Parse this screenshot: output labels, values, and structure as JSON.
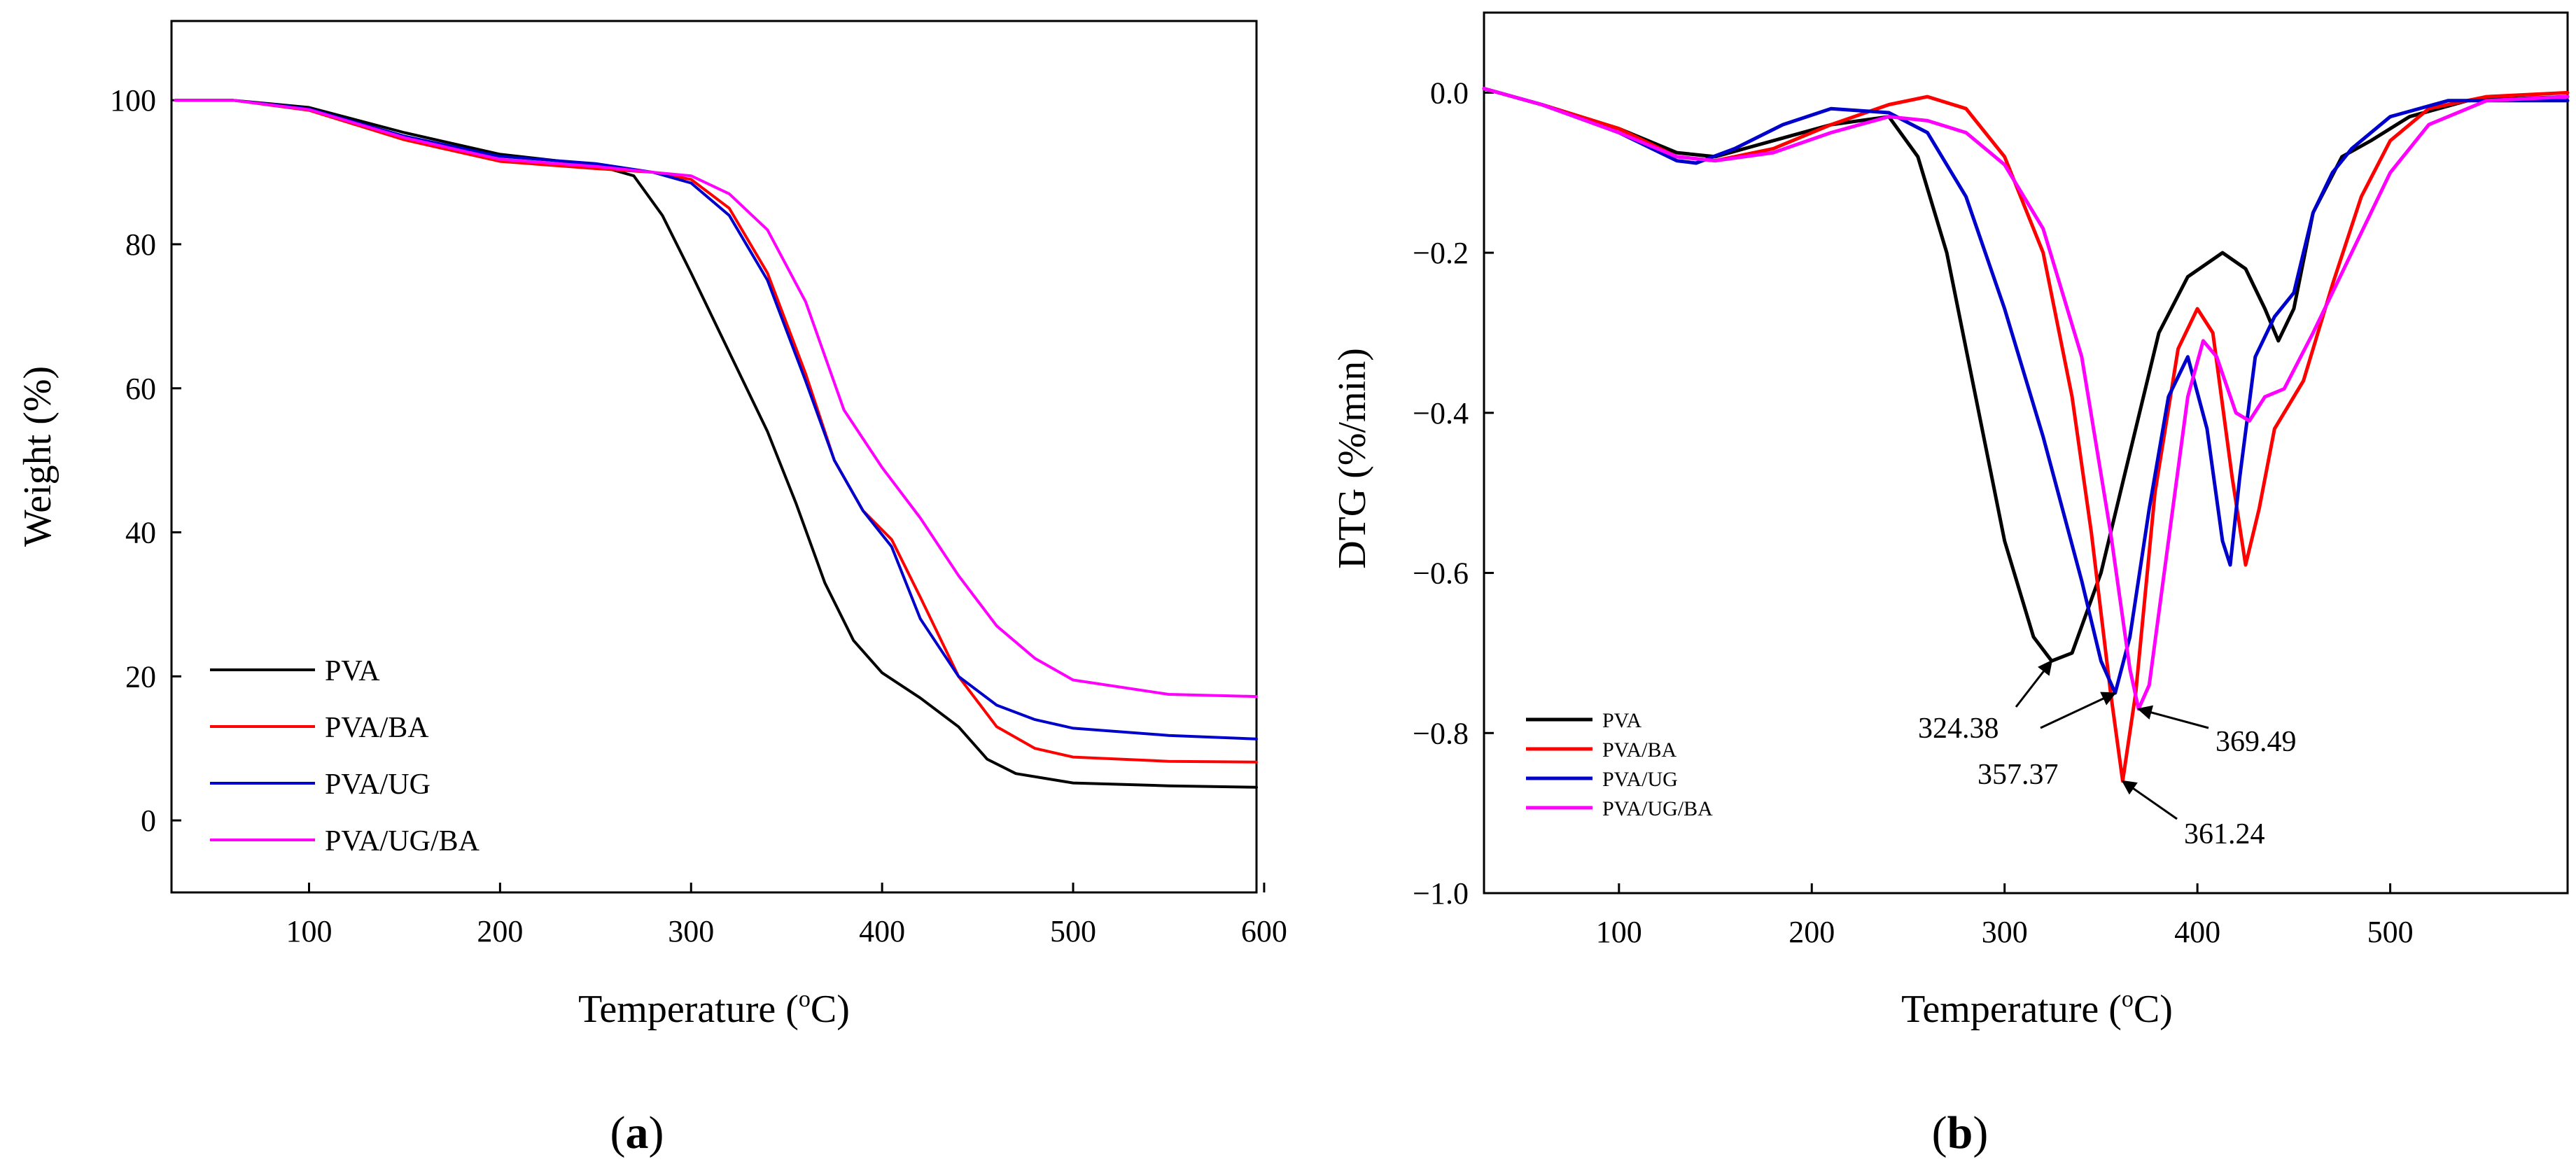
{
  "panels": {
    "a": {
      "open": "(",
      "letter": "a",
      "close": ")"
    },
    "b": {
      "open": "(",
      "letter": "b",
      "close": ")"
    }
  },
  "chart_data": [
    {
      "type": "line",
      "panel": "a",
      "title": "",
      "xlabel": "Temperature (oC)",
      "xlabel_parts": {
        "pre": "Temperature (",
        "sup": "o",
        "post": "C)"
      },
      "ylabel": "Weight (%)",
      "xlim": [
        28,
        596
      ],
      "ylim": [
        -10,
        111
      ],
      "xticks": [
        100,
        200,
        300,
        400,
        500,
        600
      ],
      "yticks": [
        0,
        20,
        40,
        60,
        80,
        100
      ],
      "legend_position": "bottom-left",
      "series": [
        {
          "name": "PVA",
          "color": "#000000",
          "points": [
            [
              30,
              100
            ],
            [
              60,
              100
            ],
            [
              100,
              99
            ],
            [
              150,
              95.5
            ],
            [
              200,
              92.5
            ],
            [
              250,
              91
            ],
            [
              270,
              89.5
            ],
            [
              285,
              84
            ],
            [
              300,
              76
            ],
            [
              320,
              65
            ],
            [
              340,
              54
            ],
            [
              355,
              44
            ],
            [
              370,
              33
            ],
            [
              385,
              25
            ],
            [
              400,
              20.5
            ],
            [
              420,
              17
            ],
            [
              440,
              13
            ],
            [
              455,
              8.5
            ],
            [
              470,
              6.5
            ],
            [
              500,
              5.2
            ],
            [
              550,
              4.8
            ],
            [
              596,
              4.6
            ]
          ]
        },
        {
          "name": "PVA/BA",
          "color": "#ff0000",
          "points": [
            [
              30,
              100
            ],
            [
              60,
              100
            ],
            [
              100,
              98.6
            ],
            [
              150,
              94.5
            ],
            [
              200,
              91.5
            ],
            [
              250,
              90.5
            ],
            [
              280,
              90
            ],
            [
              300,
              89
            ],
            [
              320,
              85
            ],
            [
              340,
              76
            ],
            [
              360,
              62
            ],
            [
              375,
              50
            ],
            [
              390,
              43
            ],
            [
              405,
              39
            ],
            [
              420,
              31
            ],
            [
              440,
              20
            ],
            [
              460,
              13
            ],
            [
              480,
              10
            ],
            [
              500,
              8.8
            ],
            [
              550,
              8.2
            ],
            [
              596,
              8.1
            ]
          ]
        },
        {
          "name": "PVA/UG",
          "color": "#0000cc",
          "points": [
            [
              30,
              100
            ],
            [
              60,
              100
            ],
            [
              100,
              98.8
            ],
            [
              150,
              95
            ],
            [
              200,
              92.2
            ],
            [
              250,
              91.2
            ],
            [
              280,
              90
            ],
            [
              300,
              88.5
            ],
            [
              320,
              84
            ],
            [
              340,
              75
            ],
            [
              360,
              61
            ],
            [
              375,
              50
            ],
            [
              390,
              43
            ],
            [
              405,
              38
            ],
            [
              420,
              28
            ],
            [
              440,
              20
            ],
            [
              460,
              16
            ],
            [
              480,
              14
            ],
            [
              500,
              12.8
            ],
            [
              550,
              11.8
            ],
            [
              596,
              11.3
            ]
          ]
        },
        {
          "name": "PVA/UG/BA",
          "color": "#ff00ff",
          "points": [
            [
              30,
              100
            ],
            [
              60,
              100
            ],
            [
              100,
              98.7
            ],
            [
              150,
              94.8
            ],
            [
              200,
              91.8
            ],
            [
              250,
              90.8
            ],
            [
              280,
              90
            ],
            [
              300,
              89.5
            ],
            [
              320,
              87
            ],
            [
              340,
              82
            ],
            [
              360,
              72
            ],
            [
              380,
              57
            ],
            [
              400,
              49
            ],
            [
              420,
              42
            ],
            [
              440,
              34
            ],
            [
              460,
              27
            ],
            [
              480,
              22.5
            ],
            [
              500,
              19.5
            ],
            [
              550,
              17.5
            ],
            [
              596,
              17.2
            ]
          ]
        }
      ]
    },
    {
      "type": "line",
      "panel": "b",
      "title": "",
      "xlabel": "Temperature (oC)",
      "xlabel_parts": {
        "pre": "Temperature (",
        "sup": "o",
        "post": "C)"
      },
      "ylabel": "DTG (%/min)",
      "xlim": [
        30,
        592
      ],
      "ylim": [
        -1.0,
        0.1
      ],
      "xticks": [
        100,
        200,
        300,
        400,
        500
      ],
      "yticks": [
        0.0,
        -0.2,
        -0.4,
        -0.6,
        -0.8,
        -1.0
      ],
      "ytick_labels": [
        "0.0",
        "−0.2",
        "−0.4",
        "−0.6",
        "−0.8",
        "−1.0"
      ],
      "legend_position": "bottom-left",
      "series": [
        {
          "name": "PVA",
          "color": "#000000",
          "points": [
            [
              30,
              0.005
            ],
            [
              60,
              -0.015
            ],
            [
              100,
              -0.045
            ],
            [
              130,
              -0.075
            ],
            [
              150,
              -0.08
            ],
            [
              180,
              -0.06
            ],
            [
              210,
              -0.04
            ],
            [
              240,
              -0.03
            ],
            [
              255,
              -0.08
            ],
            [
              270,
              -0.2
            ],
            [
              285,
              -0.38
            ],
            [
              300,
              -0.56
            ],
            [
              315,
              -0.68
            ],
            [
              324.38,
              -0.71
            ],
            [
              335,
              -0.7
            ],
            [
              350,
              -0.6
            ],
            [
              365,
              -0.45
            ],
            [
              380,
              -0.3
            ],
            [
              395,
              -0.23
            ],
            [
              413,
              -0.2
            ],
            [
              425,
              -0.22
            ],
            [
              435,
              -0.27
            ],
            [
              442,
              -0.31
            ],
            [
              450,
              -0.27
            ],
            [
              460,
              -0.15
            ],
            [
              475,
              -0.08
            ],
            [
              490,
              -0.06
            ],
            [
              510,
              -0.03
            ],
            [
              540,
              -0.01
            ],
            [
              592,
              -0.005
            ]
          ]
        },
        {
          "name": "PVA/BA",
          "color": "#ff0000",
          "points": [
            [
              30,
              0.005
            ],
            [
              60,
              -0.015
            ],
            [
              100,
              -0.045
            ],
            [
              130,
              -0.08
            ],
            [
              150,
              -0.085
            ],
            [
              180,
              -0.07
            ],
            [
              210,
              -0.04
            ],
            [
              240,
              -0.015
            ],
            [
              260,
              -0.005
            ],
            [
              280,
              -0.02
            ],
            [
              300,
              -0.08
            ],
            [
              320,
              -0.2
            ],
            [
              335,
              -0.38
            ],
            [
              345,
              -0.55
            ],
            [
              355,
              -0.75
            ],
            [
              361.24,
              -0.86
            ],
            [
              368,
              -0.75
            ],
            [
              378,
              -0.5
            ],
            [
              390,
              -0.32
            ],
            [
              400,
              -0.27
            ],
            [
              408,
              -0.3
            ],
            [
              418,
              -0.48
            ],
            [
              425,
              -0.59
            ],
            [
              432,
              -0.52
            ],
            [
              440,
              -0.42
            ],
            [
              455,
              -0.36
            ],
            [
              470,
              -0.24
            ],
            [
              485,
              -0.13
            ],
            [
              500,
              -0.06
            ],
            [
              520,
              -0.02
            ],
            [
              550,
              -0.005
            ],
            [
              592,
              0.0
            ]
          ]
        },
        {
          "name": "PVA/UG",
          "color": "#0000cc",
          "points": [
            [
              30,
              0.005
            ],
            [
              60,
              -0.015
            ],
            [
              100,
              -0.05
            ],
            [
              130,
              -0.085
            ],
            [
              140,
              -0.088
            ],
            [
              160,
              -0.07
            ],
            [
              185,
              -0.04
            ],
            [
              210,
              -0.02
            ],
            [
              240,
              -0.025
            ],
            [
              260,
              -0.05
            ],
            [
              280,
              -0.13
            ],
            [
              300,
              -0.27
            ],
            [
              320,
              -0.43
            ],
            [
              340,
              -0.61
            ],
            [
              350,
              -0.71
            ],
            [
              357.37,
              -0.75
            ],
            [
              365,
              -0.68
            ],
            [
              375,
              -0.52
            ],
            [
              385,
              -0.38
            ],
            [
              395,
              -0.33
            ],
            [
              405,
              -0.42
            ],
            [
              413,
              -0.56
            ],
            [
              417,
              -0.59
            ],
            [
              422,
              -0.48
            ],
            [
              430,
              -0.33
            ],
            [
              440,
              -0.28
            ],
            [
              450,
              -0.25
            ],
            [
              460,
              -0.15
            ],
            [
              470,
              -0.1
            ],
            [
              480,
              -0.07
            ],
            [
              500,
              -0.03
            ],
            [
              530,
              -0.01
            ],
            [
              592,
              -0.01
            ]
          ]
        },
        {
          "name": "PVA/UG/BA",
          "color": "#ff00ff",
          "points": [
            [
              30,
              0.005
            ],
            [
              60,
              -0.015
            ],
            [
              100,
              -0.05
            ],
            [
              130,
              -0.08
            ],
            [
              150,
              -0.085
            ],
            [
              180,
              -0.075
            ],
            [
              210,
              -0.05
            ],
            [
              240,
              -0.03
            ],
            [
              260,
              -0.035
            ],
            [
              280,
              -0.05
            ],
            [
              300,
              -0.09
            ],
            [
              320,
              -0.17
            ],
            [
              340,
              -0.33
            ],
            [
              355,
              -0.55
            ],
            [
              365,
              -0.72
            ],
            [
              369.49,
              -0.77
            ],
            [
              375,
              -0.74
            ],
            [
              385,
              -0.56
            ],
            [
              395,
              -0.38
            ],
            [
              403,
              -0.31
            ],
            [
              410,
              -0.33
            ],
            [
              420,
              -0.4
            ],
            [
              427,
              -0.41
            ],
            [
              435,
              -0.38
            ],
            [
              445,
              -0.37
            ],
            [
              460,
              -0.3
            ],
            [
              480,
              -0.2
            ],
            [
              500,
              -0.1
            ],
            [
              520,
              -0.04
            ],
            [
              550,
              -0.01
            ],
            [
              592,
              -0.005
            ]
          ]
        }
      ],
      "annotations": [
        {
          "label": "324.38",
          "x": 324.38,
          "y": -0.71,
          "series": "PVA"
        },
        {
          "label": "357.37",
          "x": 357.37,
          "y": -0.75,
          "series": "PVA/UG"
        },
        {
          "label": "361.24",
          "x": 361.24,
          "y": -0.86,
          "series": "PVA/BA"
        },
        {
          "label": "369.49",
          "x": 369.49,
          "y": -0.77,
          "series": "PVA/UG/BA"
        }
      ]
    }
  ]
}
